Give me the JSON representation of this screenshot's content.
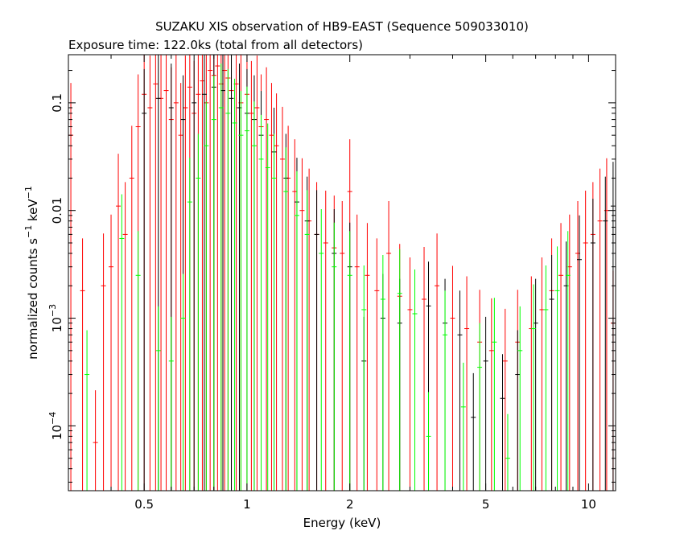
{
  "chart_data": {
    "type": "scatter",
    "title": "SUZAKU XIS observation of HB9-EAST (Sequence 509033010)",
    "subtitle": "Exposure time: 122.0ks (total from all detectors)",
    "xlabel": "Energy (keV)",
    "ylabel": "normalized counts s^-1 keV^-1",
    "x_scale": "log",
    "y_scale": "log",
    "xlim": [
      0.3,
      12
    ],
    "ylim": [
      2.5e-05,
      0.28
    ],
    "x_ticks": [
      {
        "value": 0.5,
        "label": "0.5"
      },
      {
        "value": 1,
        "label": "1"
      },
      {
        "value": 2,
        "label": "2"
      },
      {
        "value": 5,
        "label": "5"
      },
      {
        "value": 10,
        "label": "10"
      }
    ],
    "y_ticks": [
      {
        "value": 0.0001,
        "base": "10",
        "exp": "−4"
      },
      {
        "value": 0.001,
        "base": "10",
        "exp": "−3"
      },
      {
        "value": 0.01,
        "text": "0.01"
      },
      {
        "value": 0.1,
        "text": "0.1"
      }
    ],
    "series": [
      {
        "color": "#ff0000",
        "points": [
          [
            0.305,
            0.05
          ],
          [
            0.33,
            0.0018
          ],
          [
            0.36,
            7e-05
          ],
          [
            0.38,
            0.002
          ],
          [
            0.4,
            0.003
          ],
          [
            0.42,
            0.011
          ],
          [
            0.44,
            0.006
          ],
          [
            0.46,
            0.02
          ],
          [
            0.48,
            0.06
          ],
          [
            0.5,
            0.12
          ],
          [
            0.52,
            0.09
          ],
          [
            0.54,
            0.15
          ],
          [
            0.56,
            0.11
          ],
          [
            0.58,
            0.13
          ],
          [
            0.6,
            0.07
          ],
          [
            0.62,
            0.1
          ],
          [
            0.64,
            0.05
          ],
          [
            0.66,
            0.09
          ],
          [
            0.68,
            0.14
          ],
          [
            0.7,
            0.08
          ],
          [
            0.72,
            0.12
          ],
          [
            0.74,
            0.16
          ],
          [
            0.76,
            0.1
          ],
          [
            0.78,
            0.2
          ],
          [
            0.8,
            0.18
          ],
          [
            0.82,
            0.22
          ],
          [
            0.84,
            0.15
          ],
          [
            0.86,
            0.2
          ],
          [
            0.88,
            0.17
          ],
          [
            0.9,
            0.13
          ],
          [
            0.93,
            0.15
          ],
          [
            0.96,
            0.1
          ],
          [
            1.0,
            0.12
          ],
          [
            1.03,
            0.08
          ],
          [
            1.07,
            0.09
          ],
          [
            1.1,
            0.06
          ],
          [
            1.14,
            0.07
          ],
          [
            1.18,
            0.05
          ],
          [
            1.22,
            0.04
          ],
          [
            1.27,
            0.03
          ],
          [
            1.32,
            0.02
          ],
          [
            1.38,
            0.015
          ],
          [
            1.45,
            0.01
          ],
          [
            1.52,
            0.008
          ],
          [
            1.6,
            0.006
          ],
          [
            1.7,
            0.005
          ],
          [
            1.8,
            0.0045
          ],
          [
            1.9,
            0.004
          ],
          [
            2.0,
            0.015
          ],
          [
            2.1,
            0.003
          ],
          [
            2.25,
            0.0025
          ],
          [
            2.4,
            0.0018
          ],
          [
            2.6,
            0.004
          ],
          [
            2.8,
            0.0016
          ],
          [
            3.0,
            0.0012
          ],
          [
            3.3,
            0.0015
          ],
          [
            3.6,
            0.002
          ],
          [
            4.0,
            0.001
          ],
          [
            4.4,
            0.0008
          ],
          [
            4.8,
            0.0006
          ],
          [
            5.2,
            0.0005
          ],
          [
            5.7,
            0.0004
          ],
          [
            6.2,
            0.0006
          ],
          [
            6.8,
            0.0008
          ],
          [
            7.3,
            0.0012
          ],
          [
            7.8,
            0.0018
          ],
          [
            8.3,
            0.0025
          ],
          [
            8.8,
            0.003
          ],
          [
            9.3,
            0.004
          ],
          [
            9.8,
            0.005
          ],
          [
            10.3,
            0.006
          ],
          [
            10.8,
            0.008
          ],
          [
            11.3,
            0.01
          ],
          [
            11.8,
            0.0009
          ]
        ]
      },
      {
        "color": "#000000",
        "points": [
          [
            0.5,
            0.08
          ],
          [
            0.55,
            0.11
          ],
          [
            0.6,
            0.09
          ],
          [
            0.65,
            0.07
          ],
          [
            0.7,
            0.1
          ],
          [
            0.75,
            0.12
          ],
          [
            0.8,
            0.14
          ],
          [
            0.85,
            0.13
          ],
          [
            0.9,
            0.11
          ],
          [
            0.95,
            0.09
          ],
          [
            1.0,
            0.08
          ],
          [
            1.05,
            0.07
          ],
          [
            1.1,
            0.05
          ],
          [
            1.2,
            0.035
          ],
          [
            1.3,
            0.02
          ],
          [
            1.4,
            0.012
          ],
          [
            1.5,
            0.008
          ],
          [
            1.6,
            0.006
          ],
          [
            1.8,
            0.004
          ],
          [
            2.0,
            0.003
          ],
          [
            2.2,
            0.0004
          ],
          [
            2.5,
            0.001
          ],
          [
            2.8,
            0.0009
          ],
          [
            3.1,
            0.0011
          ],
          [
            3.4,
            0.0013
          ],
          [
            3.8,
            0.0009
          ],
          [
            4.2,
            0.0007
          ],
          [
            4.6,
            0.00012
          ],
          [
            5.0,
            0.0004
          ],
          [
            5.6,
            0.00018
          ],
          [
            6.2,
            0.0003
          ],
          [
            7.0,
            0.0009
          ],
          [
            7.8,
            0.0015
          ],
          [
            8.6,
            0.002
          ],
          [
            9.4,
            0.0035
          ],
          [
            10.3,
            0.005
          ],
          [
            11.2,
            0.008
          ],
          [
            11.8,
            0.011
          ]
        ]
      },
      {
        "color": "#00ff00",
        "points": [
          [
            0.34,
            0.0003
          ],
          [
            0.43,
            0.0055
          ],
          [
            0.48,
            0.0025
          ],
          [
            0.55,
            0.0005
          ],
          [
            0.6,
            0.0004
          ],
          [
            0.65,
            0.001
          ],
          [
            0.68,
            0.012
          ],
          [
            0.72,
            0.02
          ],
          [
            0.76,
            0.04
          ],
          [
            0.8,
            0.07
          ],
          [
            0.84,
            0.09
          ],
          [
            0.88,
            0.08
          ],
          [
            0.92,
            0.065
          ],
          [
            0.96,
            0.05
          ],
          [
            1.0,
            0.055
          ],
          [
            1.05,
            0.04
          ],
          [
            1.1,
            0.03
          ],
          [
            1.15,
            0.025
          ],
          [
            1.2,
            0.02
          ],
          [
            1.3,
            0.015
          ],
          [
            1.4,
            0.009
          ],
          [
            1.5,
            0.006
          ],
          [
            1.65,
            0.004
          ],
          [
            1.8,
            0.003
          ],
          [
            2.0,
            0.0025
          ],
          [
            2.2,
            0.0012
          ],
          [
            2.5,
            0.0015
          ],
          [
            2.8,
            0.0017
          ],
          [
            3.1,
            0.0011
          ],
          [
            3.4,
            8e-05
          ],
          [
            3.8,
            0.0007
          ],
          [
            4.3,
            0.00015
          ],
          [
            4.8,
            0.00035
          ],
          [
            5.3,
            0.0006
          ],
          [
            5.8,
            5e-05
          ],
          [
            6.3,
            0.0005
          ],
          [
            6.9,
            0.0008
          ],
          [
            7.5,
            0.0012
          ],
          [
            8.1,
            0.0018
          ],
          [
            8.7,
            0.0025
          ]
        ]
      }
    ]
  }
}
